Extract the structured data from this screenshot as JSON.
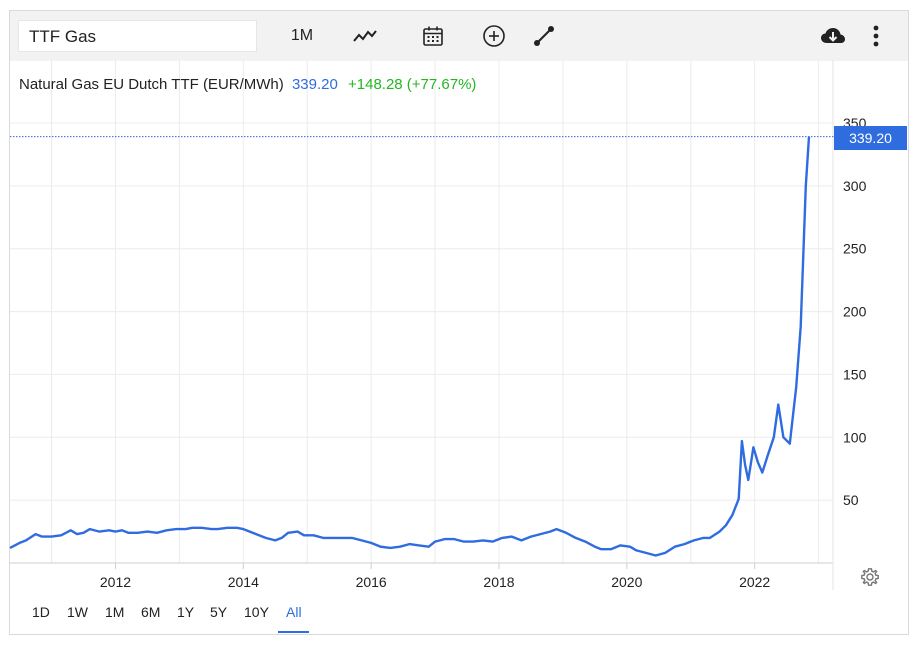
{
  "toolbar": {
    "search_value": "TTF Gas",
    "interval_label": "1M",
    "icons": [
      "line-chart-icon",
      "calendar-icon",
      "add-circle-icon",
      "draw-line-icon",
      "download-icon",
      "more-vertical-icon"
    ]
  },
  "title": {
    "name": "Natural Gas EU Dutch TTF (EUR/MWh)",
    "price": "339.20",
    "change": "+148.28 (+77.67%)"
  },
  "colors": {
    "line": "#2f6ce0",
    "up": "#22b822",
    "grid": "#ececec"
  },
  "price_tag": "339.20",
  "ranges": [
    "1D",
    "1W",
    "1M",
    "6M",
    "1Y",
    "5Y",
    "10Y",
    "All"
  ],
  "active_range": "All",
  "chart_data": {
    "type": "line",
    "title": "Natural Gas EU Dutch TTF (EUR/MWh)",
    "xlabel": "",
    "ylabel": "",
    "x_ticks": [
      "2012",
      "2014",
      "2016",
      "2018",
      "2020",
      "2022"
    ],
    "y_ticks": [
      "50",
      "100",
      "150",
      "200",
      "250",
      "300",
      "350"
    ],
    "xlim": [
      2010.35,
      2023.2
    ],
    "ylim": [
      0,
      350
    ],
    "grid": true,
    "y_axis_side": "right",
    "series": [
      {
        "name": "",
        "points": [
          [
            2010.35,
            12
          ],
          [
            2010.5,
            16
          ],
          [
            2010.6,
            18
          ],
          [
            2010.75,
            23
          ],
          [
            2010.85,
            21
          ],
          [
            2011.0,
            21
          ],
          [
            2011.15,
            22
          ],
          [
            2011.3,
            26
          ],
          [
            2011.4,
            23
          ],
          [
            2011.5,
            24
          ],
          [
            2011.6,
            27
          ],
          [
            2011.75,
            25
          ],
          [
            2011.9,
            26
          ],
          [
            2012.0,
            25
          ],
          [
            2012.1,
            26
          ],
          [
            2012.2,
            24
          ],
          [
            2012.35,
            24
          ],
          [
            2012.5,
            25
          ],
          [
            2012.65,
            24
          ],
          [
            2012.8,
            26
          ],
          [
            2012.95,
            27
          ],
          [
            2013.1,
            27
          ],
          [
            2013.2,
            28
          ],
          [
            2013.35,
            28
          ],
          [
            2013.5,
            27
          ],
          [
            2013.6,
            27
          ],
          [
            2013.75,
            28
          ],
          [
            2013.9,
            28
          ],
          [
            2014.0,
            27
          ],
          [
            2014.2,
            23
          ],
          [
            2014.35,
            20
          ],
          [
            2014.5,
            18
          ],
          [
            2014.6,
            20
          ],
          [
            2014.7,
            24
          ],
          [
            2014.85,
            25
          ],
          [
            2014.95,
            22
          ],
          [
            2015.1,
            22
          ],
          [
            2015.25,
            20
          ],
          [
            2015.4,
            20
          ],
          [
            2015.55,
            20
          ],
          [
            2015.7,
            20
          ],
          [
            2015.85,
            18
          ],
          [
            2016.0,
            16
          ],
          [
            2016.15,
            13
          ],
          [
            2016.3,
            12
          ],
          [
            2016.45,
            13
          ],
          [
            2016.6,
            15
          ],
          [
            2016.75,
            14
          ],
          [
            2016.9,
            13
          ],
          [
            2017.0,
            17
          ],
          [
            2017.15,
            19
          ],
          [
            2017.3,
            19
          ],
          [
            2017.45,
            17
          ],
          [
            2017.6,
            17
          ],
          [
            2017.75,
            18
          ],
          [
            2017.9,
            17
          ],
          [
            2018.05,
            20
          ],
          [
            2018.2,
            21
          ],
          [
            2018.35,
            18
          ],
          [
            2018.5,
            21
          ],
          [
            2018.65,
            23
          ],
          [
            2018.8,
            25
          ],
          [
            2018.9,
            27
          ],
          [
            2019.05,
            24
          ],
          [
            2019.2,
            20
          ],
          [
            2019.35,
            17
          ],
          [
            2019.5,
            13
          ],
          [
            2019.6,
            11
          ],
          [
            2019.75,
            11
          ],
          [
            2019.9,
            14
          ],
          [
            2020.05,
            13
          ],
          [
            2020.15,
            10
          ],
          [
            2020.3,
            8
          ],
          [
            2020.45,
            6
          ],
          [
            2020.6,
            8
          ],
          [
            2020.75,
            13
          ],
          [
            2020.9,
            15
          ],
          [
            2021.05,
            18
          ],
          [
            2021.2,
            20
          ],
          [
            2021.3,
            20
          ],
          [
            2021.45,
            25
          ],
          [
            2021.55,
            30
          ],
          [
            2021.65,
            38
          ],
          [
            2021.75,
            51
          ],
          [
            2021.8,
            97
          ],
          [
            2021.85,
            78
          ],
          [
            2021.9,
            66
          ],
          [
            2021.98,
            92
          ],
          [
            2022.05,
            80
          ],
          [
            2022.12,
            72
          ],
          [
            2022.2,
            85
          ],
          [
            2022.3,
            100
          ],
          [
            2022.37,
            126
          ],
          [
            2022.45,
            100
          ],
          [
            2022.55,
            95
          ],
          [
            2022.65,
            140
          ],
          [
            2022.72,
            188
          ],
          [
            2022.8,
            300
          ],
          [
            2022.85,
            339.2
          ]
        ]
      }
    ],
    "last_value": 339.2
  }
}
